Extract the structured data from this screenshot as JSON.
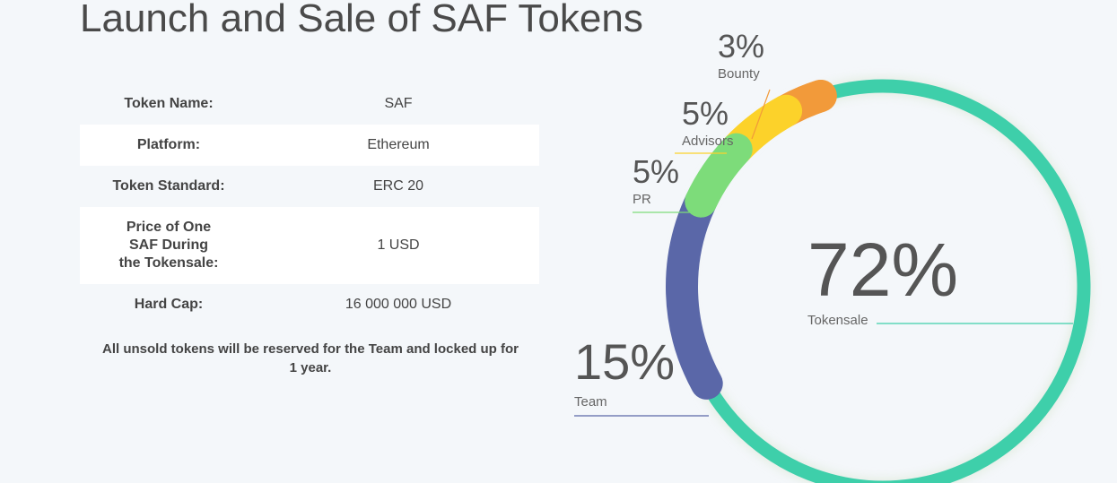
{
  "title": "Launch and Sale of SAF Tokens",
  "token_table": [
    {
      "label": "Token Name:",
      "value": "SAF"
    },
    {
      "label": "Platform:",
      "value": "Ethereum"
    },
    {
      "label": "Token Standard:",
      "value": "ERC 20"
    },
    {
      "label": "Price of One SAF During the Tokensale:",
      "value": "1 USD"
    },
    {
      "label": "Hard Cap:",
      "value": "16 000 000 USD"
    }
  ],
  "note": "All unsold tokens will be reserved for the Team and locked up for 1 year.",
  "chart_data": {
    "type": "pie",
    "variant": "donut",
    "slices": [
      {
        "name": "Tokensale",
        "value": 72,
        "label": "72%",
        "color": "#3ecfaa"
      },
      {
        "name": "Team",
        "value": 15,
        "label": "15%",
        "color": "#5a67a8"
      },
      {
        "name": "PR",
        "value": 5,
        "label": "5%",
        "color": "#7ddc7a"
      },
      {
        "name": "Advisors",
        "value": 5,
        "label": "5%",
        "color": "#fcd22a"
      },
      {
        "name": "Bounty",
        "value": 3,
        "label": "3%",
        "color": "#f29a3a"
      }
    ]
  }
}
